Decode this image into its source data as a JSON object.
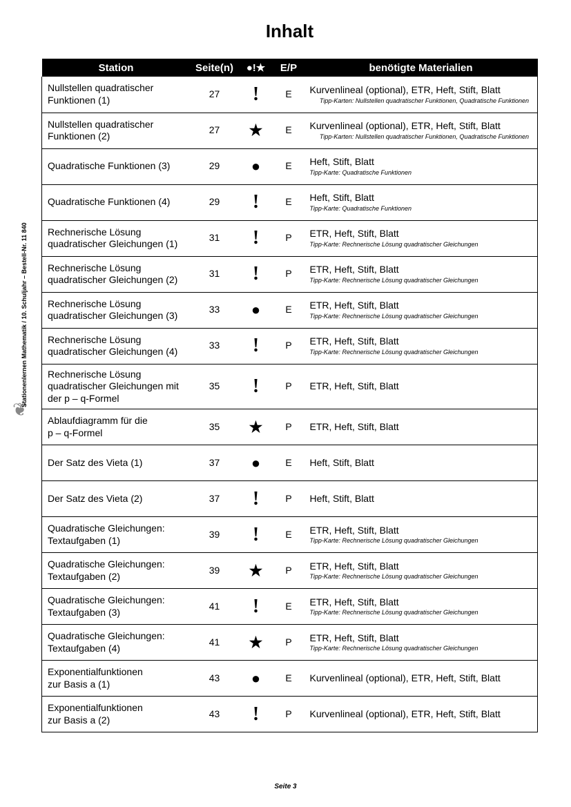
{
  "title": "Inhalt",
  "footer": "Seite 3",
  "side_text": "Stationenlernen Mathematik  /  10. Schuljahr     –     Bestell-Nr. 11 840",
  "symbols_header": "●!★",
  "headers": {
    "station": "Station",
    "pages": "Seite(n)",
    "ep": "E/P",
    "materials": "benötigte Materialien"
  },
  "symbol_map": {
    "dot": "●",
    "excl": "!",
    "star": "★"
  },
  "rows": [
    {
      "station": "Nullstellen quadratischer Funktionen (1)",
      "pages": "27",
      "symbol": "excl",
      "ep": "E",
      "materials": "Kurvenlineal (optional), ETR, Heft, Stift, Blatt",
      "tipp": "Tipp-Karten: Nullstellen quadratischer Funktionen, Quadratische Funktionen",
      "tipp_align": "right"
    },
    {
      "station": "Nullstellen quadratischer Funktionen (2)",
      "pages": "27",
      "symbol": "star",
      "ep": "E",
      "materials": "Kurvenlineal (optional), ETR, Heft, Stift, Blatt",
      "tipp": "Tipp-Karten: Nullstellen quadratischer Funktionen, Quadratische Funktionen",
      "tipp_align": "right"
    },
    {
      "station": "Quadratische Funktionen (3)",
      "pages": "29",
      "symbol": "dot",
      "ep": "E",
      "materials": "Heft, Stift, Blatt",
      "tipp": "Tipp-Karte: Quadratische Funktionen",
      "tipp_align": "left"
    },
    {
      "station": "Quadratische Funktionen (4)",
      "pages": "29",
      "symbol": "excl",
      "ep": "E",
      "materials": "Heft, Stift, Blatt",
      "tipp": "Tipp-Karte: Quadratische Funktionen",
      "tipp_align": "left"
    },
    {
      "station": "Rechnerische Lösung quadratischer Gleichungen (1)",
      "pages": "31",
      "symbol": "excl",
      "ep": "P",
      "materials": "ETR, Heft, Stift, Blatt",
      "tipp": "Tipp-Karte: Rechnerische Lösung quadratischer Gleichungen",
      "tipp_align": "left"
    },
    {
      "station": "Rechnerische Lösung quadratischer Gleichungen (2)",
      "pages": "31",
      "symbol": "excl",
      "ep": "P",
      "materials": "ETR, Heft, Stift, Blatt",
      "tipp": "Tipp-Karte: Rechnerische Lösung quadratischer Gleichungen",
      "tipp_align": "left"
    },
    {
      "station": "Rechnerische Lösung quadratischer Gleichungen (3)",
      "pages": "33",
      "symbol": "dot",
      "ep": "E",
      "materials": "ETR, Heft, Stift, Blatt",
      "tipp": "Tipp-Karte: Rechnerische Lösung quadratischer Gleichungen",
      "tipp_align": "left"
    },
    {
      "station": "Rechnerische Lösung quadratischer Gleichungen (4)",
      "pages": "33",
      "symbol": "excl",
      "ep": "P",
      "materials": "ETR, Heft, Stift, Blatt",
      "tipp": "Tipp-Karte: Rechnerische Lösung quadratischer Gleichungen",
      "tipp_align": "left"
    },
    {
      "station": "Rechnerische Lösung quadratischer Gleichungen mit der p – q-Formel",
      "pages": "35",
      "symbol": "excl",
      "ep": "P",
      "materials": "ETR, Heft, Stift, Blatt"
    },
    {
      "station": "Ablaufdiagramm für die\np – q-Formel",
      "pages": "35",
      "symbol": "star",
      "ep": "P",
      "materials": "ETR, Heft, Stift, Blatt"
    },
    {
      "station": "Der Satz des Vieta (1)",
      "pages": "37",
      "symbol": "dot",
      "ep": "E",
      "materials": "Heft, Stift, Blatt"
    },
    {
      "station": "Der Satz des Vieta (2)",
      "pages": "37",
      "symbol": "excl",
      "ep": "P",
      "materials": "Heft, Stift, Blatt"
    },
    {
      "station": "Quadratische Gleichungen: Textaufgaben (1)",
      "pages": "39",
      "symbol": "excl",
      "ep": "E",
      "materials": "ETR, Heft, Stift, Blatt",
      "tipp": "Tipp-Karte: Rechnerische Lösung quadratischer Gleichungen",
      "tipp_align": "left"
    },
    {
      "station": "Quadratische Gleichungen: Textaufgaben (2)",
      "pages": "39",
      "symbol": "star",
      "ep": "P",
      "materials": "ETR, Heft, Stift, Blatt",
      "tipp": "Tipp-Karte: Rechnerische Lösung quadratischer Gleichungen",
      "tipp_align": "left"
    },
    {
      "station": "Quadratische Gleichungen: Textaufgaben (3)",
      "pages": "41",
      "symbol": "excl",
      "ep": "E",
      "materials": "ETR, Heft, Stift, Blatt",
      "tipp": "Tipp-Karte: Rechnerische Lösung quadratischer Gleichungen",
      "tipp_align": "left"
    },
    {
      "station": "Quadratische Gleichungen: Textaufgaben (4)",
      "pages": "41",
      "symbol": "star",
      "ep": "P",
      "materials": "ETR, Heft, Stift, Blatt",
      "tipp": "Tipp-Karte: Rechnerische Lösung quadratischer Gleichungen",
      "tipp_align": "left"
    },
    {
      "station": "Exponentialfunktionen\nzur Basis a (1)",
      "pages": "43",
      "symbol": "dot",
      "ep": "E",
      "materials": "Kurvenlineal (optional), ETR, Heft, Stift, Blatt"
    },
    {
      "station": "Exponentialfunktionen\nzur Basis a (2)",
      "pages": "43",
      "symbol": "excl",
      "ep": "P",
      "materials": "Kurvenlineal (optional), ETR, Heft, Stift, Blatt"
    }
  ]
}
